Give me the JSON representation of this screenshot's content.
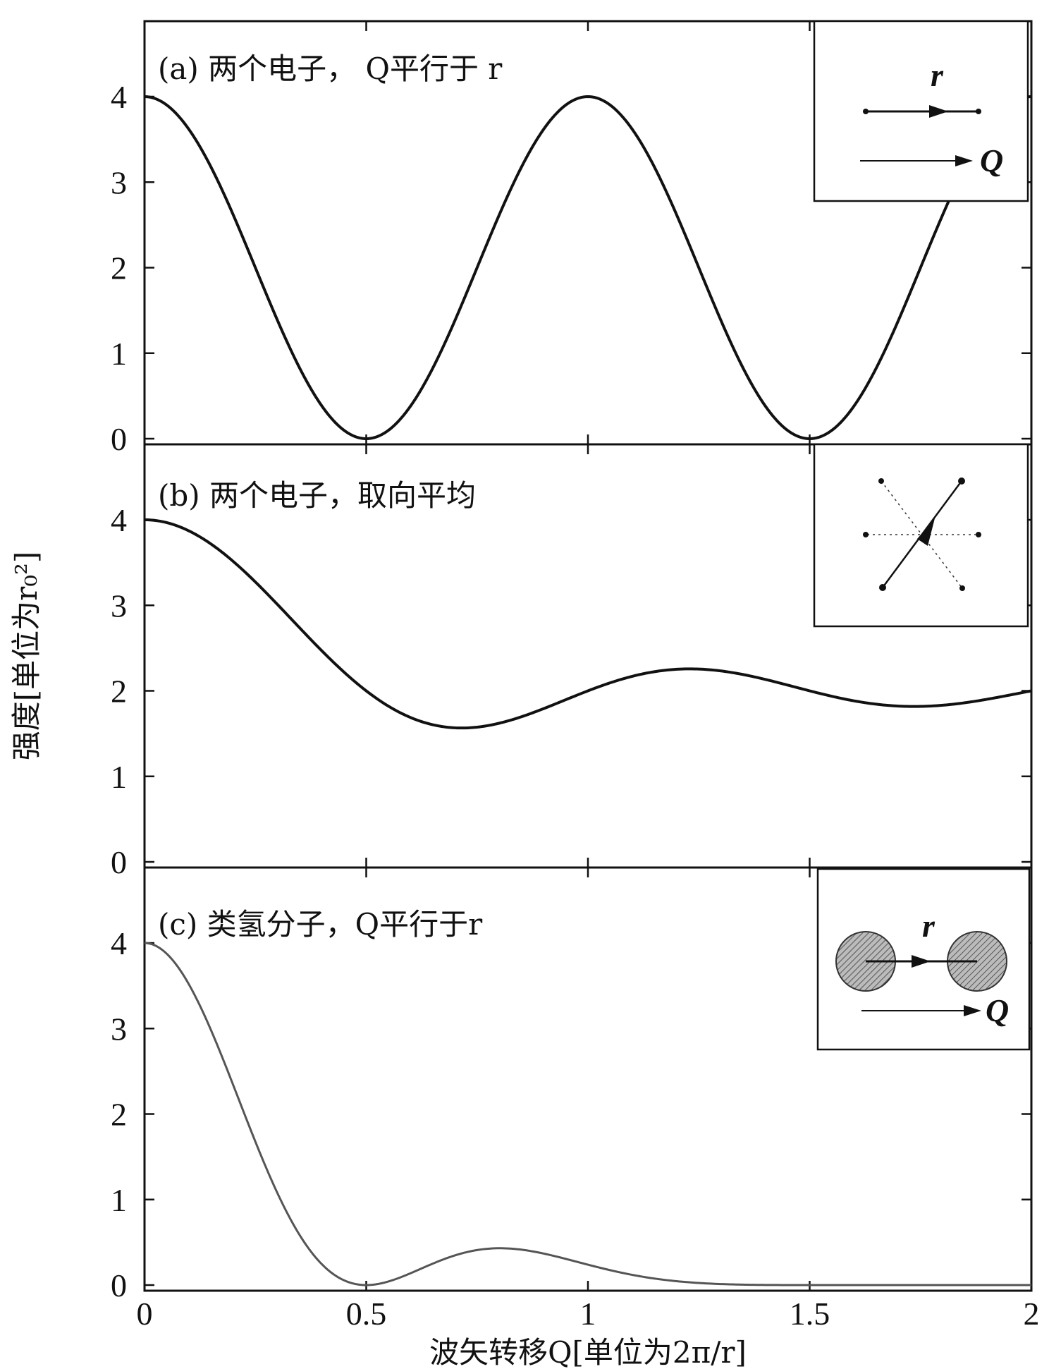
{
  "chart_data": {
    "type": "line",
    "ylabel": "强度[单位为r₀²]",
    "xlabel": "波矢转移Q[单位为2π/r]",
    "xlim": [
      0,
      2
    ],
    "ylim": [
      0,
      4.8
    ],
    "x_ticks": [
      "0",
      "0.5",
      "1",
      "1.5",
      "2"
    ],
    "y_ticks": [
      "0",
      "1",
      "2",
      "3",
      "4"
    ],
    "panels": [
      {
        "title": "(a) 两个电子， Q平行于 r",
        "series": [
          {
            "formula": "2 + 2cos(2πQ)",
            "color": "#111111"
          }
        ],
        "inset": {
          "kind": "parallel",
          "labels": [
            "r",
            "Q"
          ]
        }
      },
      {
        "title": "(b) 两个电子，取向平均",
        "series": [
          {
            "formula": "2 + 2sin(2πQ)/(2πQ)",
            "color": "#111111"
          }
        ],
        "inset": {
          "kind": "orientation-average",
          "labels": []
        }
      },
      {
        "title": "(c) 类氢分子，Q平行于r",
        "series": [
          {
            "formula": "(2 + 2cos(2πQ))·exp(-(2πQ)²/14)",
            "color": "#555555"
          }
        ],
        "inset": {
          "kind": "molecule",
          "labels": [
            "r",
            "Q"
          ]
        }
      }
    ],
    "grid": false
  }
}
